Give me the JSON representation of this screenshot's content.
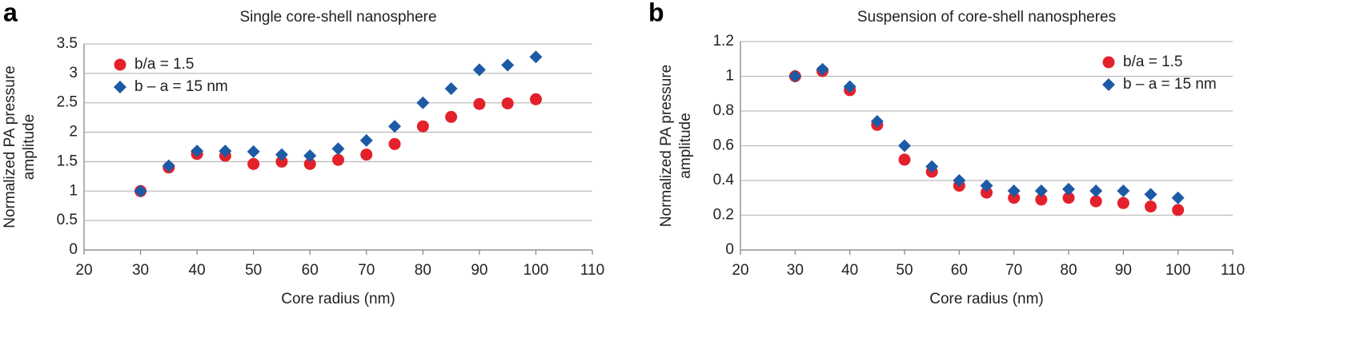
{
  "chart_data": [
    {
      "type": "scatter",
      "panel_label": "a",
      "title": "Single core-shell nanosphere",
      "xlabel": "Core radius (nm)",
      "ylabel": "Normalized PA pressure amplitude",
      "x": [
        30,
        35,
        40,
        45,
        50,
        55,
        60,
        65,
        70,
        75,
        80,
        85,
        90,
        95,
        100
      ],
      "series": [
        {
          "name": "b/a = 1.5",
          "color": "#e3212b",
          "marker": "circle",
          "values": [
            1.0,
            1.4,
            1.63,
            1.6,
            1.46,
            1.5,
            1.46,
            1.53,
            1.62,
            1.8,
            2.1,
            2.26,
            2.48,
            2.49,
            2.56
          ]
        },
        {
          "name": "b – a = 15 nm",
          "color": "#1d5aa6",
          "marker": "diamond",
          "values": [
            1.0,
            1.43,
            1.68,
            1.68,
            1.67,
            1.62,
            1.6,
            1.72,
            1.86,
            2.1,
            2.5,
            2.74,
            3.06,
            3.14,
            3.28
          ]
        }
      ],
      "xlim": [
        20,
        110
      ],
      "xticks": [
        20,
        30,
        40,
        50,
        60,
        70,
        80,
        90,
        100,
        110
      ],
      "ylim": [
        0,
        3.5
      ],
      "yticks": [
        0,
        0.5,
        1,
        1.5,
        2,
        2.5,
        3,
        3.5
      ],
      "grid": true,
      "legend": "upper left"
    },
    {
      "type": "scatter",
      "panel_label": "b",
      "title": "Suspension of core-shell nanospheres",
      "xlabel": "Core radius (nm)",
      "ylabel": "Normalized PA pressure amplitude",
      "x": [
        30,
        35,
        40,
        45,
        50,
        55,
        60,
        65,
        70,
        75,
        80,
        85,
        90,
        95,
        100
      ],
      "series": [
        {
          "name": "b/a = 1.5",
          "color": "#e3212b",
          "marker": "circle",
          "values": [
            1.0,
            1.03,
            0.92,
            0.72,
            0.52,
            0.45,
            0.37,
            0.33,
            0.3,
            0.29,
            0.3,
            0.28,
            0.27,
            0.25,
            0.23
          ]
        },
        {
          "name": "b – a = 15 nm",
          "color": "#1d5aa6",
          "marker": "diamond",
          "values": [
            1.0,
            1.04,
            0.94,
            0.74,
            0.6,
            0.48,
            0.4,
            0.37,
            0.34,
            0.34,
            0.35,
            0.34,
            0.34,
            0.32,
            0.3
          ]
        }
      ],
      "xlim": [
        20,
        110
      ],
      "xticks": [
        20,
        30,
        40,
        50,
        60,
        70,
        80,
        90,
        100,
        110
      ],
      "ylim": [
        0,
        1.2
      ],
      "yticks": [
        0,
        0.2,
        0.4,
        0.6,
        0.8,
        1,
        1.2
      ],
      "grid": true,
      "legend": "upper right"
    }
  ]
}
